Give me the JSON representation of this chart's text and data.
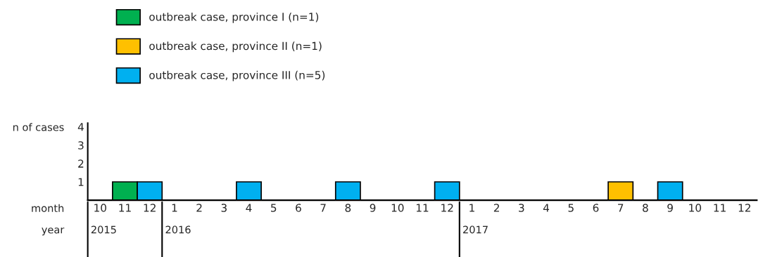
{
  "chart_data": {
    "type": "bar",
    "ylabel": "n of cases",
    "categories": [
      "10",
      "11",
      "12",
      "1",
      "2",
      "3",
      "4",
      "5",
      "6",
      "7",
      "8",
      "9",
      "10",
      "11",
      "12",
      "1",
      "2",
      "3",
      "4",
      "5",
      "6",
      "7",
      "8",
      "9",
      "10",
      "11",
      "12"
    ],
    "series": [
      {
        "name": "outbreak case, province I (n=1)",
        "color": "#00b050",
        "values": [
          null,
          1,
          null,
          null,
          null,
          null,
          null,
          null,
          null,
          null,
          null,
          null,
          null,
          null,
          null,
          null,
          null,
          null,
          null,
          null,
          null,
          null,
          null,
          null,
          null,
          null,
          null
        ]
      },
      {
        "name": "outbreak case, province II (n=1)",
        "color": "#ffc000",
        "values": [
          null,
          null,
          null,
          null,
          null,
          null,
          null,
          null,
          null,
          null,
          null,
          null,
          null,
          null,
          null,
          null,
          null,
          null,
          null,
          null,
          null,
          1,
          null,
          null,
          null,
          null,
          null
        ]
      },
      {
        "name": "outbreak case, province III (n=5)",
        "color": "#00b0f0",
        "values": [
          null,
          null,
          1,
          null,
          null,
          null,
          1,
          null,
          null,
          null,
          1,
          null,
          null,
          null,
          1,
          null,
          null,
          null,
          null,
          null,
          null,
          null,
          null,
          1,
          null,
          null,
          null
        ]
      }
    ],
    "ylim": [
      0,
      4.2
    ],
    "yticks": [
      1,
      2,
      3,
      4
    ],
    "grid": false,
    "legend": "top left",
    "annotations": [
      "month",
      "year",
      "2015",
      "2016",
      "2017"
    ]
  }
}
